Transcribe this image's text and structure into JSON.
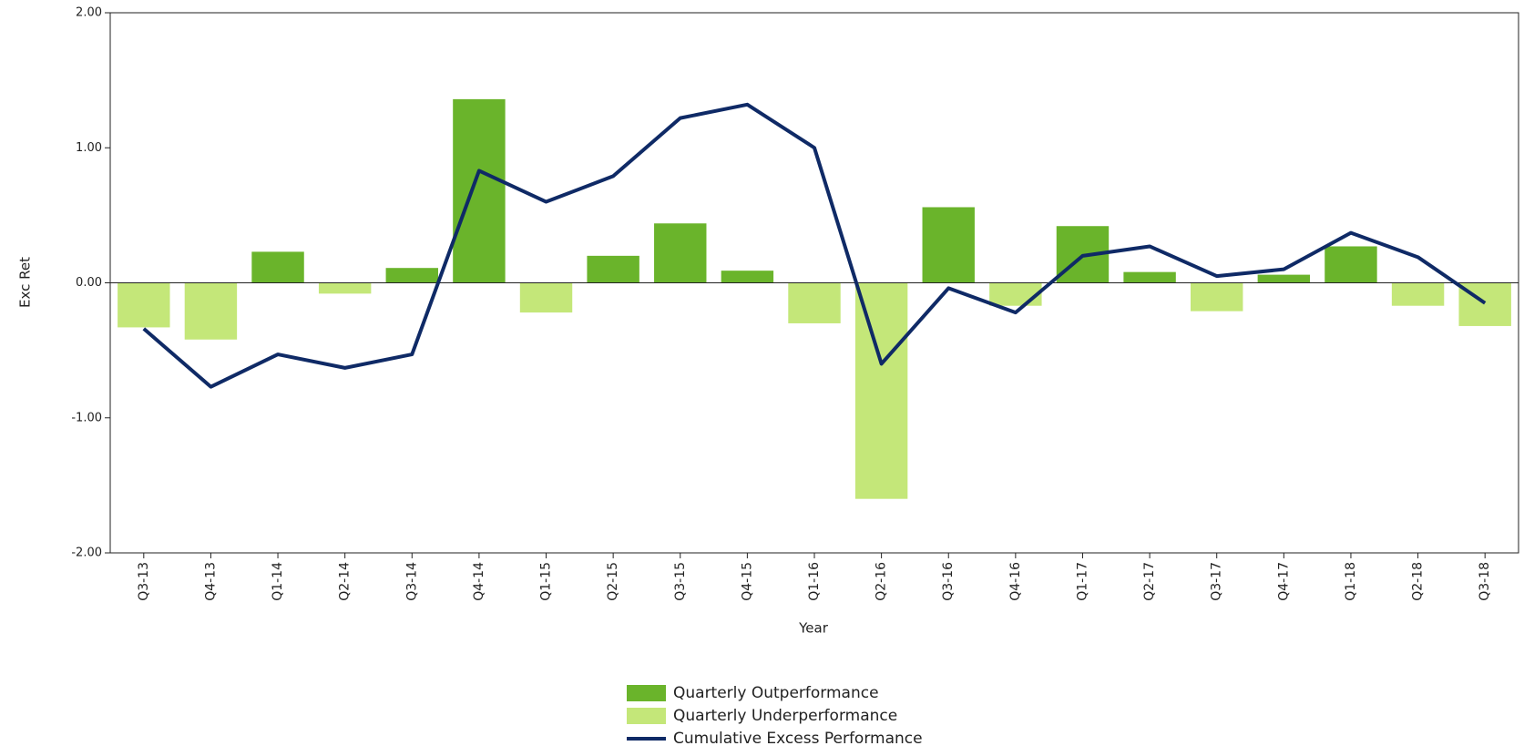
{
  "chart_data": {
    "type": "bar_line",
    "x_label": "Year",
    "y_label": "Exc Ret",
    "categories": [
      "Q3-13",
      "Q4-13",
      "Q1-14",
      "Q2-14",
      "Q3-14",
      "Q4-14",
      "Q1-15",
      "Q2-15",
      "Q3-15",
      "Q4-15",
      "Q1-16",
      "Q2-16",
      "Q3-16",
      "Q4-16",
      "Q1-17",
      "Q2-17",
      "Q3-17",
      "Q4-17",
      "Q1-18",
      "Q2-18",
      "Q3-18"
    ],
    "series": [
      {
        "name": "Quarterly Outperformance",
        "kind": "bar",
        "color": "#6ab42b",
        "values": [
          null,
          null,
          0.23,
          null,
          0.11,
          1.36,
          null,
          0.2,
          0.44,
          0.09,
          null,
          null,
          0.56,
          null,
          0.42,
          0.08,
          null,
          0.06,
          0.27,
          null,
          null
        ]
      },
      {
        "name": "Quarterly Underperformance",
        "kind": "bar",
        "color": "#c4e779",
        "values": [
          -0.33,
          -0.42,
          null,
          -0.08,
          null,
          null,
          -0.22,
          null,
          null,
          null,
          -0.3,
          -1.6,
          null,
          -0.17,
          null,
          null,
          -0.21,
          null,
          null,
          -0.17,
          -0.32
        ]
      },
      {
        "name": "Cumulative Excess Performance",
        "kind": "line",
        "color": "#0f2a66",
        "values": [
          -0.34,
          -0.77,
          -0.53,
          -0.63,
          -0.53,
          0.83,
          0.6,
          0.79,
          1.22,
          1.32,
          1.0,
          -0.6,
          -0.04,
          -0.22,
          0.2,
          0.27,
          0.05,
          0.1,
          0.37,
          0.19,
          -0.15
        ]
      }
    ],
    "ylim": [
      -2,
      2
    ],
    "yticks": [
      {
        "value": -2,
        "label": "-2.00"
      },
      {
        "value": -1,
        "label": "-1.00"
      },
      {
        "value": 0,
        "label": "0.00"
      },
      {
        "value": 1,
        "label": "1.00"
      },
      {
        "value": 2,
        "label": "2.00"
      }
    ],
    "grid": false,
    "legend": "bottom"
  }
}
